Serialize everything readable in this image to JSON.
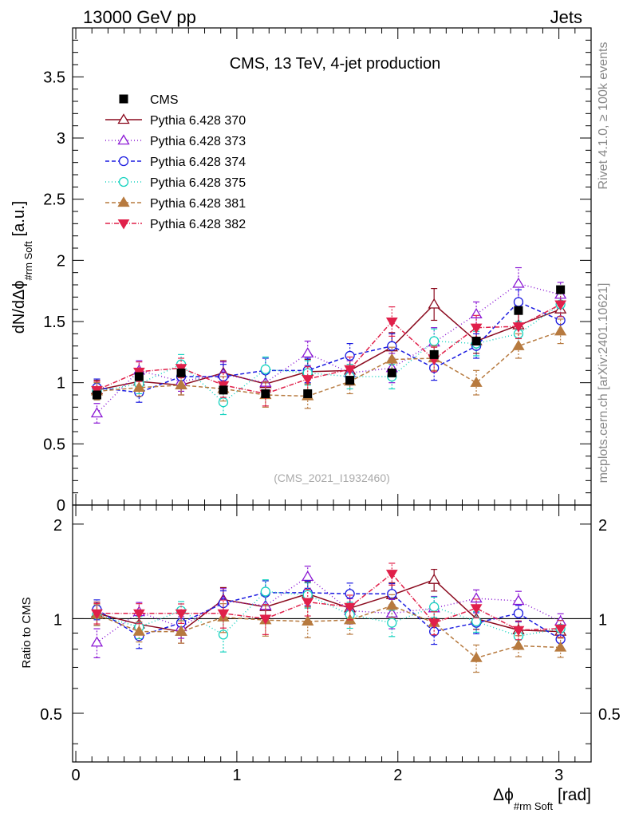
{
  "header": {
    "left": "13000 GeV pp",
    "right": "Jets"
  },
  "side_text": {
    "rivet": "Rivet 4.1.0, ≥ 100k events",
    "mcplots": "mcplots.cern.ch [arXiv:2401.10621]"
  },
  "chart_data": [
    {
      "type": "scatter",
      "title": "CMS, 13 TeV, 4-jet production",
      "annotation": "(CMS_2021_I1932460)",
      "ylabel_main": "dN/dΔϕ",
      "ylabel_sub": "#rm Soft",
      "ylabel_unit": "[a.u.]",
      "xlabel_main": "Δϕ",
      "xlabel_sub": "#rm Soft",
      "xlabel_unit": "[rad]",
      "xlim": [
        -0.02,
        3.2
      ],
      "ylim": [
        0,
        3.9
      ],
      "yticks": [
        0,
        0.5,
        1,
        1.5,
        2,
        2.5,
        3,
        3.5
      ],
      "ytick_labels": [
        "0",
        "0.5",
        "1",
        "1.5",
        "2",
        "2.5",
        "3",
        "3.5"
      ],
      "x": [
        0.131,
        0.393,
        0.654,
        0.916,
        1.178,
        1.44,
        1.702,
        1.963,
        2.225,
        2.487,
        2.749,
        3.01
      ],
      "series": [
        {
          "name": "CMS",
          "color": "#000000",
          "marker": "square",
          "dash": "none",
          "errors": [
            0.02,
            0.02,
            0.02,
            0.02,
            0.02,
            0.02,
            0.02,
            0.02,
            0.02,
            0.02,
            0.02,
            0.03
          ],
          "values": [
            0.9,
            1.05,
            1.08,
            0.94,
            0.91,
            0.91,
            1.02,
            1.08,
            1.23,
            1.34,
            1.59,
            1.76
          ]
        },
        {
          "name": "Pythia 6.428 370",
          "color": "#8b0a1e",
          "marker": "triangle-open",
          "dash": "none",
          "errors": [
            0.08,
            0.08,
            0.08,
            0.1,
            0.1,
            0.1,
            0.1,
            0.12,
            0.13,
            0.1,
            0.1,
            0.1
          ],
          "values": [
            0.94,
            1.01,
            0.98,
            1.08,
            0.99,
            1.09,
            1.1,
            1.29,
            1.64,
            1.34,
            1.47,
            1.6
          ]
        },
        {
          "name": "Pythia 6.428 373",
          "color": "#8b18d4",
          "marker": "triangle-open",
          "dash": "1,3",
          "errors": [
            0.08,
            0.08,
            0.08,
            0.1,
            0.1,
            0.1,
            0.1,
            0.12,
            0.12,
            0.1,
            0.13,
            0.1
          ],
          "values": [
            0.75,
            1.1,
            1.01,
            1.07,
            1.0,
            1.24,
            1.08,
            1.12,
            1.33,
            1.56,
            1.81,
            1.72
          ]
        },
        {
          "name": "Pythia 6.428 374",
          "color": "#1a1ae0",
          "marker": "circle-open",
          "dash": "5,3",
          "errors": [
            0.07,
            0.08,
            0.08,
            0.1,
            0.1,
            0.1,
            0.1,
            0.1,
            0.1,
            0.1,
            0.1,
            0.1
          ],
          "values": [
            0.96,
            0.92,
            1.05,
            1.05,
            1.1,
            1.1,
            1.22,
            1.3,
            1.12,
            1.3,
            1.66,
            1.51
          ]
        },
        {
          "name": "Pythia 6.428 375",
          "color": "#19d3c0",
          "marker": "circle-open",
          "dash": "1,3",
          "errors": [
            0.07,
            0.08,
            0.08,
            0.1,
            0.1,
            0.1,
            0.1,
            0.1,
            0.1,
            0.1,
            0.1,
            0.1
          ],
          "values": [
            0.93,
            0.99,
            1.15,
            0.84,
            1.11,
            1.08,
            1.05,
            1.05,
            1.34,
            1.32,
            1.4,
            1.64
          ]
        },
        {
          "name": "Pythia 6.428 381",
          "color": "#b77a3f",
          "marker": "triangle-filled",
          "dash": "5,3",
          "errors": [
            0.07,
            0.07,
            0.08,
            0.1,
            0.1,
            0.1,
            0.1,
            0.1,
            0.1,
            0.1,
            0.1,
            0.1
          ],
          "values": [
            0.93,
            0.96,
            0.98,
            0.95,
            0.9,
            0.89,
            1.01,
            1.19,
            1.2,
            1.0,
            1.3,
            1.42
          ]
        },
        {
          "name": "Pythia 6.428 382",
          "color": "#e0204a",
          "marker": "triangle-down-filled",
          "dash": "6,2,1,2",
          "errors": [
            0.07,
            0.08,
            0.08,
            0.1,
            0.1,
            0.1,
            0.1,
            0.12,
            0.1,
            0.1,
            0.1,
            0.1
          ],
          "values": [
            0.94,
            1.09,
            1.12,
            0.98,
            0.91,
            1.03,
            1.11,
            1.5,
            1.19,
            1.45,
            1.46,
            1.64
          ]
        }
      ]
    },
    {
      "type": "scatter",
      "ylabel": "Ratio to CMS",
      "yscale": "log",
      "ylim": [
        0.35,
        2.3
      ],
      "yticks": [
        0.5,
        1,
        2
      ],
      "ytick_labels": [
        "0.5",
        "1",
        "2"
      ],
      "xticks": [
        0,
        1,
        2,
        3
      ],
      "xtick_labels": [
        "0",
        "1",
        "2",
        "3"
      ],
      "x": [
        0.131,
        0.393,
        0.654,
        0.916,
        1.178,
        1.44,
        1.702,
        1.963,
        2.225,
        2.487,
        2.749,
        3.01
      ],
      "reference": 1,
      "series": [
        {
          "name": "Pythia 6.428 370",
          "values": [
            1.04,
            0.96,
            0.91,
            1.15,
            1.09,
            1.2,
            1.08,
            1.19,
            1.33,
            1.0,
            0.92,
            0.91
          ]
        },
        {
          "name": "Pythia 6.428 373",
          "values": [
            0.84,
            1.05,
            0.94,
            1.14,
            1.1,
            1.36,
            1.06,
            1.04,
            1.08,
            1.16,
            1.14,
            0.98
          ]
        },
        {
          "name": "Pythia 6.428 374",
          "values": [
            1.07,
            0.88,
            0.97,
            1.12,
            1.21,
            1.21,
            1.2,
            1.2,
            0.91,
            0.97,
            1.04,
            0.86
          ]
        },
        {
          "name": "Pythia 6.428 375",
          "values": [
            1.03,
            0.94,
            1.06,
            0.89,
            1.22,
            1.19,
            1.03,
            0.97,
            1.09,
            0.98,
            0.88,
            0.93
          ]
        },
        {
          "name": "Pythia 6.428 381",
          "values": [
            1.03,
            0.91,
            0.91,
            1.01,
            0.99,
            0.98,
            0.99,
            1.1,
            0.97,
            0.75,
            0.82,
            0.81
          ]
        },
        {
          "name": "Pythia 6.428 382",
          "values": [
            1.04,
            1.04,
            1.04,
            1.04,
            1.0,
            1.13,
            1.09,
            1.39,
            0.97,
            1.08,
            0.92,
            0.93
          ]
        }
      ]
    }
  ]
}
